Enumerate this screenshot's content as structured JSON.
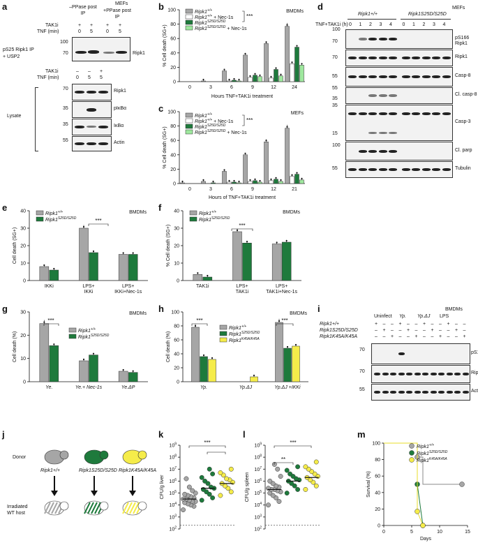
{
  "panels": {
    "a": {
      "letter": "a",
      "col_minus": "–PPase post IP",
      "col_plus": "+PPase post IP",
      "mefs": "MEFs",
      "tak1_label": "TAK1i",
      "tnf_label": "TNF (min)",
      "row1": [
        "+",
        "+",
        "+",
        "+"
      ],
      "tnf_row": [
        "0",
        "5",
        "0",
        "5"
      ],
      "ip_label": "pS25 Ripk1 IP + USP2",
      "ip_marks": [
        "100",
        "70"
      ],
      "ip_protein": "Ripk1",
      "lysate_label": "Lysate",
      "lysate_tak": [
        "–",
        "–",
        "+"
      ],
      "lysate_tnf": [
        "0",
        "5",
        "5"
      ],
      "lysate_marks": [
        "70",
        "35",
        "35",
        "55"
      ],
      "lysate_proteins": [
        "Ripk1",
        "pIκBα",
        "IκBα",
        "Actin"
      ]
    },
    "b": {
      "letter": "b",
      "title": "BMDMs",
      "ylabel": "% Cell death (SG+)",
      "xlabel": "Hours TNF+TAK1i treatment",
      "sig": "***",
      "legend": [
        "Ripk1+/+",
        "Ripk1+/+ + Nec-1s",
        "Ripk1S25D/S25D",
        "Ripk1S25D/S25D + Nec-1s"
      ]
    },
    "c": {
      "letter": "c",
      "title": "MEFs",
      "ylabel": "% Cell death (SG+)",
      "xlabel": "Hours of TNF+TAK1i treatment",
      "sig": "***",
      "legend": [
        "Ripk1+/+",
        "Ripk1+/+ + Nec-1s",
        "Ripk1S25D/S25D",
        "Ripk1S25D/S25D + Nec-1s"
      ]
    },
    "d": {
      "letter": "d",
      "title": "MEFs",
      "g1": "Ripk1+/+",
      "g2": "Ripk1S25D/S25D",
      "treat": "TNF+TAK1i (h)",
      "times": [
        "0",
        "1",
        "2",
        "3",
        "4",
        "0",
        "1",
        "2",
        "3",
        "4"
      ],
      "marks": [
        "100",
        "70",
        "70",
        "55",
        "55",
        "35",
        "35",
        "15",
        "100",
        "55"
      ],
      "proteins": [
        "pS166 Ripk1",
        "Ripk1",
        "Casp-8",
        "Cl. casp-8",
        "Casp-3",
        "Cl. parp",
        "Tubulin"
      ]
    },
    "e": {
      "letter": "e",
      "title": "BMDMs",
      "ylabel": "Cell death (SG+)",
      "sig": "***",
      "legend": [
        "Ripk1+/+",
        "Ripk1S25D/S25D"
      ]
    },
    "f": {
      "letter": "f",
      "title": "BMDMs",
      "ylabel": "% Cell death (SG+)",
      "sig": "***",
      "legend": [
        "Ripk1+/+",
        "Ripk1S25D/S25D"
      ]
    },
    "g": {
      "letter": "g",
      "title": "BMDMs",
      "ylabel": "Cell death (%)",
      "sig": "***",
      "legend": [
        "Ripk1+/+",
        "Ripk1S25D/S25D"
      ]
    },
    "h": {
      "letter": "h",
      "title": "BMDMs",
      "ylabel": "Cell death (%)",
      "sig": "***",
      "legend": [
        "Ripk1+/+",
        "Ripk1S25D/S25D",
        "Ripk1K45A/K45A"
      ]
    },
    "i": {
      "letter": "i",
      "title": "BMDMs",
      "groups": [
        "Uninfect",
        "Yp.",
        "Yp.ΔJ",
        "LPS"
      ],
      "geno": [
        "Ripk1+/+",
        "Ripk1S25D/S25D",
        "Ripk1K45A/K45A"
      ],
      "signs": [
        [
          "+",
          "–",
          "–",
          "+",
          "–",
          "–",
          "+",
          "–",
          "–",
          "+",
          "–",
          "–"
        ],
        [
          "–",
          "+",
          "–",
          "–",
          "+",
          "–",
          "–",
          "+",
          "–",
          "–",
          "+",
          "–"
        ],
        [
          "–",
          "–",
          "+",
          "–",
          "–",
          "+",
          "–",
          "–",
          "+",
          "–",
          "–",
          "+"
        ]
      ],
      "marks": [
        "70",
        "70",
        "55"
      ],
      "proteins": [
        "pS166 Ripk1",
        "Ripk1",
        "Actin"
      ]
    },
    "j": {
      "letter": "j",
      "donor": "Donor",
      "host": "Irradiated WT host",
      "mice": [
        "Ripk1+/+",
        "Ripk1S25D/S25D",
        "Ripk1K45A/K45A"
      ]
    },
    "k": {
      "letter": "k",
      "ylabel": "CFU/g liver",
      "sig": "***"
    },
    "l": {
      "letter": "l",
      "ylabel": "CFU/g spleen",
      "sig1": "**",
      "sig2": "***"
    },
    "m": {
      "letter": "m",
      "ylabel": "Survival (%)",
      "xlabel": "Days",
      "legend": [
        "Ripk1+/+",
        "Ripk1S25D/S25D",
        "Ripk1K45A/K45A"
      ]
    }
  },
  "colors": {
    "wt": "#a6a6a6",
    "s25d": "#1e7a3c",
    "k45a": "#f5ec4a",
    "wt_nec": "#ffffff",
    "s25d_nec": "#9ee89e"
  },
  "chart_data": [
    {
      "id": "b",
      "type": "bar",
      "categories": [
        "0",
        "3",
        "6",
        "9",
        "12",
        "24"
      ],
      "ylim": [
        0,
        100
      ],
      "yticks": [
        "0",
        "20",
        "40",
        "60",
        "80",
        "100"
      ],
      "series": [
        {
          "name": "Ripk1+/+",
          "values": [
            0,
            1,
            15,
            37,
            53,
            77
          ]
        },
        {
          "name": "Ripk1+/+ + Nec-1s",
          "values": [
            0,
            0,
            1,
            6,
            5,
            25
          ]
        },
        {
          "name": "Ripk1S25D/S25D",
          "values": [
            0,
            0,
            2,
            9,
            17,
            48
          ]
        },
        {
          "name": "Ripk1S25D/S25D + Nec-1s",
          "values": [
            0,
            0,
            1,
            7,
            8,
            23
          ]
        }
      ]
    },
    {
      "id": "c",
      "type": "bar",
      "categories": [
        "0",
        "3",
        "6",
        "9",
        "12",
        "21"
      ],
      "ylim": [
        0,
        100
      ],
      "yticks": [
        "0",
        "20",
        "40",
        "60",
        "80",
        "100"
      ],
      "series": [
        {
          "name": "Ripk1+/+",
          "values": [
            1,
            3,
            17,
            40,
            58,
            77
          ]
        },
        {
          "name": "Ripk1+/+ + Nec-1s",
          "values": [
            0,
            0,
            2,
            3,
            4,
            10
          ]
        },
        {
          "name": "Ripk1S25D/S25D",
          "values": [
            0,
            1,
            2,
            4,
            6,
            13
          ]
        },
        {
          "name": "Ripk1S25D/S25D + Nec-1s",
          "values": [
            0,
            0,
            1,
            2,
            3,
            5
          ]
        }
      ]
    },
    {
      "id": "e",
      "type": "bar",
      "categories": [
        "IKKi",
        "LPS+ IKKi",
        "LPS+ IKKi+Nec-1s"
      ],
      "ylim": [
        0,
        40
      ],
      "yticks": [
        "0",
        "10",
        "20",
        "30",
        "40"
      ],
      "series": [
        {
          "name": "Ripk1+/+",
          "values": [
            8,
            30,
            15
          ]
        },
        {
          "name": "Ripk1S25D/S25D",
          "values": [
            6,
            16,
            15
          ]
        }
      ]
    },
    {
      "id": "f",
      "type": "bar",
      "categories": [
        "TAK1i",
        "LPS+ TAK1i",
        "LPS+ TAK1i+Nec-1s"
      ],
      "ylim": [
        0,
        40
      ],
      "yticks": [
        "0",
        "10",
        "20",
        "30",
        "40"
      ],
      "series": [
        {
          "name": "Ripk1+/+",
          "values": [
            3.5,
            28,
            21
          ]
        },
        {
          "name": "Ripk1S25D/S25D",
          "values": [
            2,
            21.5,
            22
          ]
        }
      ]
    },
    {
      "id": "g",
      "type": "bar",
      "categories": [
        "Ye.",
        "Ye.+ Nec-1s",
        "Ye.ΔP"
      ],
      "ylim": [
        0,
        30
      ],
      "yticks": [
        "0",
        "10",
        "20",
        "30"
      ],
      "series": [
        {
          "name": "Ripk1+/+",
          "values": [
            25,
            9,
            4.5
          ]
        },
        {
          "name": "Ripk1S25D/S25D",
          "values": [
            15.5,
            11.5,
            4
          ]
        }
      ]
    },
    {
      "id": "h",
      "type": "bar",
      "categories": [
        "Yp.",
        "Yp.ΔJ",
        "Yp.ΔJ +IKKi"
      ],
      "ylim": [
        0,
        100
      ],
      "yticks": [
        "0",
        "20",
        "40",
        "60",
        "80",
        "100"
      ],
      "series": [
        {
          "name": "Ripk1+/+",
          "values": [
            78,
            0,
            85
          ]
        },
        {
          "name": "Ripk1S25D/S25D",
          "values": [
            36,
            0,
            48
          ]
        },
        {
          "name": "Ripk1K45A/K45A",
          "values": [
            32,
            7,
            51
          ]
        }
      ]
    },
    {
      "id": "k",
      "type": "scatter",
      "ylabel": "CFU/g liver",
      "yscale": "log",
      "ylim": [
        2,
        9
      ],
      "yticks": [
        "10^2",
        "10^3",
        "10^4",
        "10^5",
        "10^6",
        "10^7",
        "10^8",
        "10^9"
      ],
      "series": [
        {
          "name": "Ripk1+/+",
          "median_log": 4.5,
          "values_log": [
            3.6,
            3.9,
            4.0,
            4.1,
            4.2,
            4.3,
            4.3,
            4.4,
            4.5,
            4.5,
            4.6,
            4.7,
            4.8,
            4.9,
            5.0,
            5.2,
            5.5,
            6.2
          ]
        },
        {
          "name": "Ripk1S25D/S25D",
          "median_log": 5.4,
          "values_log": [
            4.4,
            4.6,
            4.9,
            5.1,
            5.3,
            5.4,
            5.5,
            5.8,
            6.0,
            6.3,
            6.6,
            7.0
          ]
        },
        {
          "name": "Ripk1K45A/K45A",
          "median_log": 5.8,
          "values_log": [
            4.8,
            5.1,
            5.4,
            5.6,
            5.8,
            5.9,
            6.1,
            6.2,
            6.5,
            6.7,
            7.0
          ]
        }
      ]
    },
    {
      "id": "l",
      "type": "scatter",
      "ylabel": "CFU/g spleen",
      "yscale": "log",
      "ylim": [
        2,
        9
      ],
      "yticks": [
        "10^2",
        "10^3",
        "10^4",
        "10^5",
        "10^6",
        "10^7",
        "10^8",
        "10^9"
      ],
      "series": [
        {
          "name": "Ripk1+/+",
          "median_log": 5.3,
          "values_log": [
            4.0,
            4.3,
            4.6,
            4.8,
            5.0,
            5.1,
            5.2,
            5.3,
            5.3,
            5.4,
            5.5,
            5.6,
            5.8,
            6.0,
            6.4,
            7.0,
            7.4
          ]
        },
        {
          "name": "Ripk1S25D/S25D",
          "median_log": 6.0,
          "values_log": [
            5.0,
            5.3,
            5.6,
            5.8,
            6.0,
            6.1,
            6.2,
            6.4,
            6.6,
            6.9,
            7.2
          ]
        },
        {
          "name": "Ripk1K45A/K45A",
          "median_log": 6.3,
          "values_log": [
            5.3,
            5.6,
            5.9,
            6.1,
            6.3,
            6.4,
            6.6,
            6.8,
            7.0,
            7.2,
            7.6
          ]
        }
      ]
    },
    {
      "id": "m",
      "type": "line",
      "xlim": [
        0,
        15
      ],
      "ylim": [
        0,
        100
      ],
      "xticks": [
        "0",
        "5",
        "10",
        "15"
      ],
      "yticks": [
        "0",
        "20",
        "40",
        "60",
        "80",
        "100"
      ],
      "series": [
        {
          "name": "Ripk1+/+",
          "x": [
            0,
            6,
            6,
            7,
            7,
            14
          ],
          "y": [
            100,
            100,
            83,
            83,
            50,
            50
          ]
        },
        {
          "name": "Ripk1S25D/S25D",
          "x": [
            0,
            6,
            6,
            7
          ],
          "y": [
            100,
            100,
            50,
            0
          ]
        },
        {
          "name": "Ripk1K45A/K45A",
          "x": [
            0,
            6,
            6,
            7
          ],
          "y": [
            100,
            100,
            17,
            0
          ]
        }
      ]
    }
  ]
}
